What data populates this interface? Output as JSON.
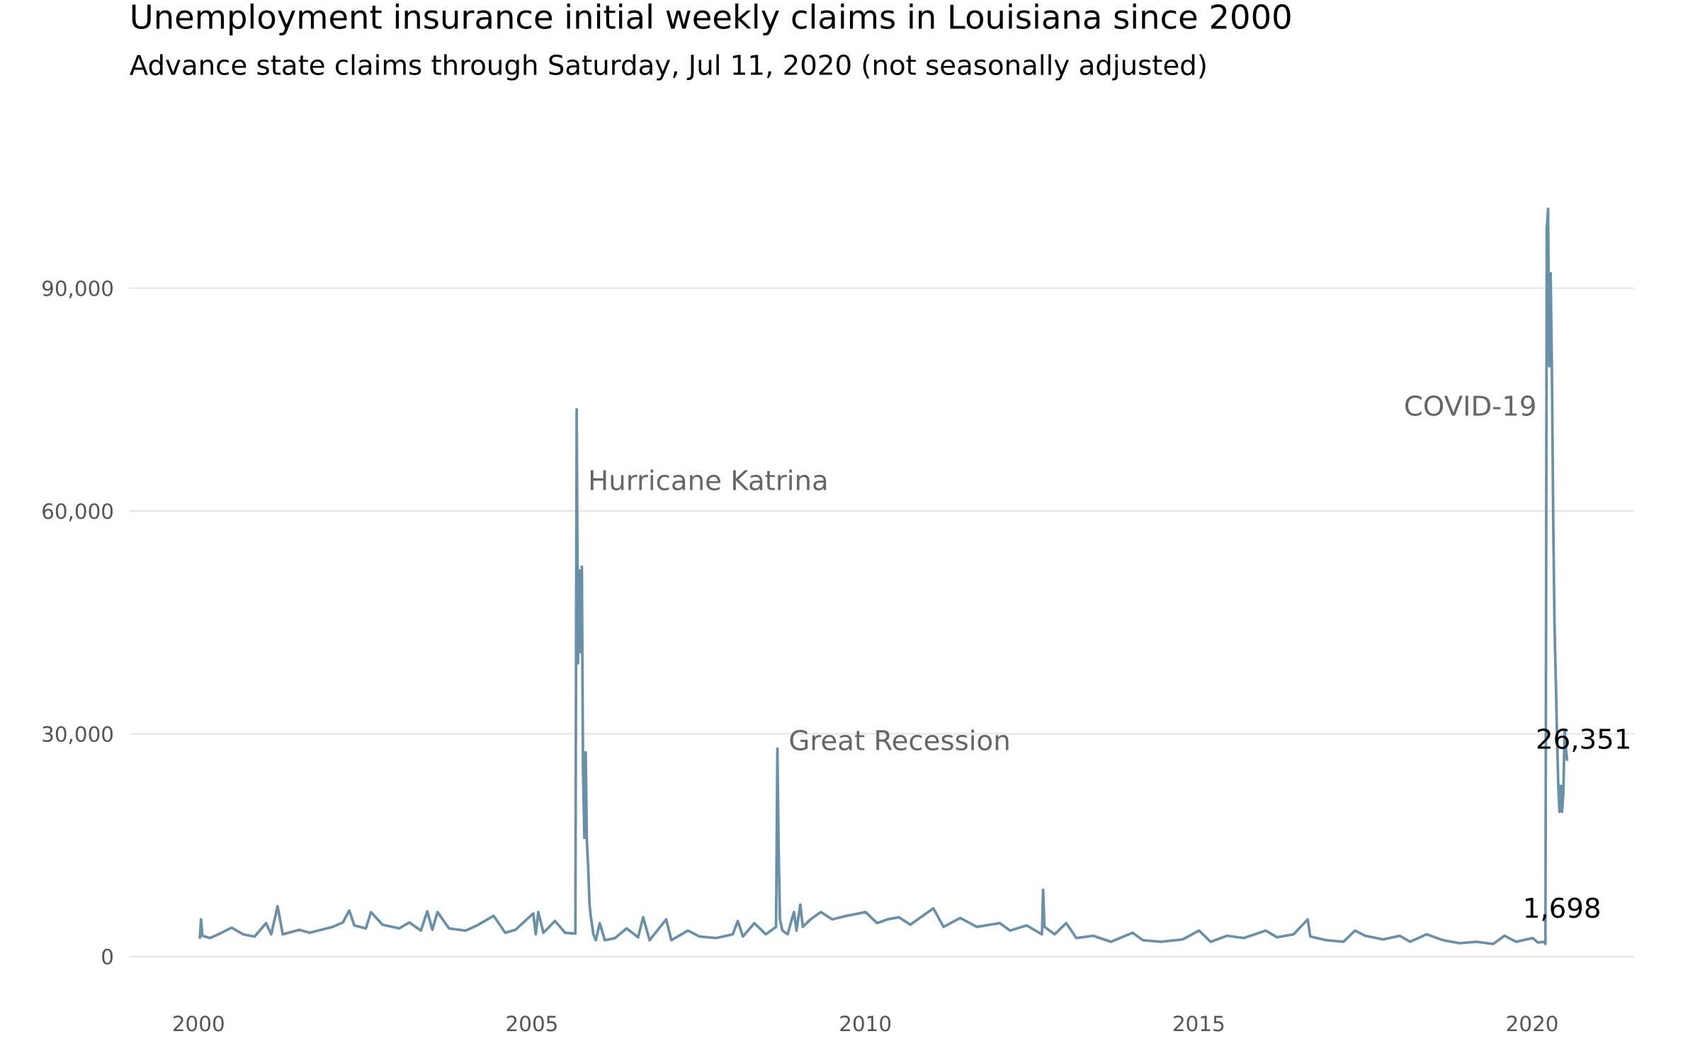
{
  "chart_data": {
    "type": "line",
    "title": "Unemployment insurance initial weekly claims in Louisiana since 2000",
    "subtitle": "Advance state claims through Saturday, Jul 11, 2020 (not seasonally adjusted)",
    "xlabel": "",
    "ylabel": "",
    "xlim": [
      "1999-01-01",
      "2021-07-01"
    ],
    "ylim": [
      0,
      101000
    ],
    "grid": "horizontal",
    "legend": "none",
    "line_color": "#6a90a8",
    "x_ticks": [
      "2000",
      "2005",
      "2010",
      "2015",
      "2020"
    ],
    "y_ticks": [
      {
        "value": 0,
        "label": "0"
      },
      {
        "value": 30000,
        "label": "30,000"
      },
      {
        "value": 60000,
        "label": "60,000"
      },
      {
        "value": 90000,
        "label": "90,000"
      }
    ],
    "annotations": [
      {
        "text": "Hurricane Katrina",
        "date": "2005-09-17",
        "value": 64000,
        "anchor": "start"
      },
      {
        "text": "Great Recession",
        "date": "2008-09-20",
        "value": 29000,
        "anchor": "start"
      },
      {
        "text": "COVID-19",
        "date": "2020-03-14",
        "value": 74000,
        "anchor": "end"
      }
    ],
    "value_labels": [
      {
        "text": "26,351",
        "date": "2020-07-11",
        "value": 26351
      },
      {
        "text": "1,698",
        "date": "2020-03-14",
        "value": 1698
      }
    ],
    "series": [
      {
        "points": [
          [
            "2000-01-08",
            2400
          ],
          [
            "2000-01-15",
            5000
          ],
          [
            "2000-01-22",
            2800
          ],
          [
            "2000-03-04",
            2500
          ],
          [
            "2000-05-06",
            3200
          ],
          [
            "2000-07-01",
            3900
          ],
          [
            "2000-09-02",
            3000
          ],
          [
            "2000-11-04",
            2700
          ],
          [
            "2001-01-06",
            4500
          ],
          [
            "2001-02-03",
            3000
          ],
          [
            "2001-03-10",
            6800
          ],
          [
            "2001-04-07",
            3000
          ],
          [
            "2001-07-07",
            3600
          ],
          [
            "2001-09-01",
            3200
          ],
          [
            "2002-01-05",
            4000
          ],
          [
            "2002-03-02",
            4600
          ],
          [
            "2002-04-06",
            6200
          ],
          [
            "2002-05-04",
            4200
          ],
          [
            "2002-07-06",
            3800
          ],
          [
            "2002-08-03",
            6000
          ],
          [
            "2002-10-05",
            4300
          ],
          [
            "2003-01-04",
            3800
          ],
          [
            "2003-03-01",
            4600
          ],
          [
            "2003-05-03",
            3500
          ],
          [
            "2003-06-07",
            6100
          ],
          [
            "2003-07-05",
            3600
          ],
          [
            "2003-08-02",
            6000
          ],
          [
            "2003-10-04",
            3800
          ],
          [
            "2004-01-03",
            3500
          ],
          [
            "2004-03-06",
            4200
          ],
          [
            "2004-06-05",
            5500
          ],
          [
            "2004-08-07",
            3200
          ],
          [
            "2004-10-02",
            3600
          ],
          [
            "2005-01-08",
            5800
          ],
          [
            "2005-01-22",
            3000
          ],
          [
            "2005-02-05",
            6000
          ],
          [
            "2005-03-05",
            3200
          ],
          [
            "2005-05-07",
            4800
          ],
          [
            "2005-07-02",
            3200
          ],
          [
            "2005-08-27",
            3100
          ],
          [
            "2005-09-03",
            73700
          ],
          [
            "2005-09-10",
            39500
          ],
          [
            "2005-09-17",
            52000
          ],
          [
            "2005-09-24",
            41000
          ],
          [
            "2005-10-01",
            52500
          ],
          [
            "2005-10-08",
            25000
          ],
          [
            "2005-10-15",
            16000
          ],
          [
            "2005-10-22",
            27500
          ],
          [
            "2005-10-29",
            15500
          ],
          [
            "2005-11-05",
            12000
          ],
          [
            "2005-11-12",
            7000
          ],
          [
            "2005-11-19",
            5500
          ],
          [
            "2005-12-03",
            3000
          ],
          [
            "2005-12-17",
            2200
          ],
          [
            "2006-01-07",
            4500
          ],
          [
            "2006-02-04",
            2200
          ],
          [
            "2006-04-01",
            2500
          ],
          [
            "2006-06-03",
            3800
          ],
          [
            "2006-08-05",
            2600
          ],
          [
            "2006-09-02",
            5300
          ],
          [
            "2006-10-07",
            2200
          ],
          [
            "2007-01-06",
            5000
          ],
          [
            "2007-02-03",
            2200
          ],
          [
            "2007-05-05",
            3500
          ],
          [
            "2007-07-07",
            2700
          ],
          [
            "2007-10-06",
            2500
          ],
          [
            "2008-01-05",
            3000
          ],
          [
            "2008-02-02",
            4800
          ],
          [
            "2008-03-01",
            2700
          ],
          [
            "2008-05-03",
            4500
          ],
          [
            "2008-07-05",
            3000
          ],
          [
            "2008-08-30",
            4000
          ],
          [
            "2008-09-06",
            28000
          ],
          [
            "2008-09-13",
            15000
          ],
          [
            "2008-09-20",
            5000
          ],
          [
            "2008-10-04",
            3500
          ],
          [
            "2008-11-01",
            3000
          ],
          [
            "2008-12-06",
            6000
          ],
          [
            "2008-12-20",
            3500
          ],
          [
            "2009-01-10",
            7000
          ],
          [
            "2009-01-24",
            4000
          ],
          [
            "2009-03-07",
            5000
          ],
          [
            "2009-05-02",
            6000
          ],
          [
            "2009-07-04",
            5000
          ],
          [
            "2009-09-05",
            5400
          ],
          [
            "2010-01-02",
            6000
          ],
          [
            "2010-03-06",
            4500
          ],
          [
            "2010-05-01",
            5000
          ],
          [
            "2010-07-03",
            5300
          ],
          [
            "2010-09-04",
            4300
          ],
          [
            "2011-01-08",
            6500
          ],
          [
            "2011-03-05",
            4000
          ],
          [
            "2011-06-04",
            5200
          ],
          [
            "2011-09-03",
            4000
          ],
          [
            "2012-01-07",
            4500
          ],
          [
            "2012-03-03",
            3500
          ],
          [
            "2012-06-02",
            4200
          ],
          [
            "2012-08-25",
            3000
          ],
          [
            "2012-09-01",
            9000
          ],
          [
            "2012-09-08",
            4000
          ],
          [
            "2012-11-03",
            3000
          ],
          [
            "2013-01-05",
            4500
          ],
          [
            "2013-03-02",
            2500
          ],
          [
            "2013-06-01",
            2800
          ],
          [
            "2013-09-07",
            2000
          ],
          [
            "2014-01-04",
            3200
          ],
          [
            "2014-03-01",
            2200
          ],
          [
            "2014-06-07",
            2000
          ],
          [
            "2014-10-04",
            2300
          ],
          [
            "2015-01-03",
            3500
          ],
          [
            "2015-03-07",
            2000
          ],
          [
            "2015-06-06",
            2800
          ],
          [
            "2015-09-05",
            2500
          ],
          [
            "2016-01-02",
            3500
          ],
          [
            "2016-03-05",
            2600
          ],
          [
            "2016-06-04",
            3000
          ],
          [
            "2016-08-20",
            5000
          ],
          [
            "2016-09-03",
            2700
          ],
          [
            "2016-12-03",
            2200
          ],
          [
            "2017-03-04",
            2000
          ],
          [
            "2017-05-06",
            3500
          ],
          [
            "2017-07-01",
            2800
          ],
          [
            "2017-10-07",
            2300
          ],
          [
            "2018-01-06",
            2800
          ],
          [
            "2018-03-03",
            2000
          ],
          [
            "2018-06-02",
            3000
          ],
          [
            "2018-09-01",
            2200
          ],
          [
            "2018-12-01",
            1800
          ],
          [
            "2019-03-02",
            2000
          ],
          [
            "2019-06-01",
            1700
          ],
          [
            "2019-08-03",
            2800
          ],
          [
            "2019-10-05",
            2000
          ],
          [
            "2020-01-04",
            2500
          ],
          [
            "2020-02-01",
            1900
          ],
          [
            "2020-03-07",
            2000
          ],
          [
            "2020-03-14",
            1698
          ],
          [
            "2020-03-21",
            98000
          ],
          [
            "2020-03-28",
            100700
          ],
          [
            "2020-04-04",
            79500
          ],
          [
            "2020-04-11",
            92000
          ],
          [
            "2020-04-18",
            80000
          ],
          [
            "2020-04-25",
            60000
          ],
          [
            "2020-05-02",
            45000
          ],
          [
            "2020-05-09",
            38000
          ],
          [
            "2020-05-16",
            30000
          ],
          [
            "2020-05-23",
            23000
          ],
          [
            "2020-05-30",
            19500
          ],
          [
            "2020-06-06",
            23000
          ],
          [
            "2020-06-13",
            19500
          ],
          [
            "2020-06-20",
            22000
          ],
          [
            "2020-06-27",
            30500
          ],
          [
            "2020-07-04",
            28000
          ],
          [
            "2020-07-11",
            26351
          ]
        ]
      }
    ]
  }
}
